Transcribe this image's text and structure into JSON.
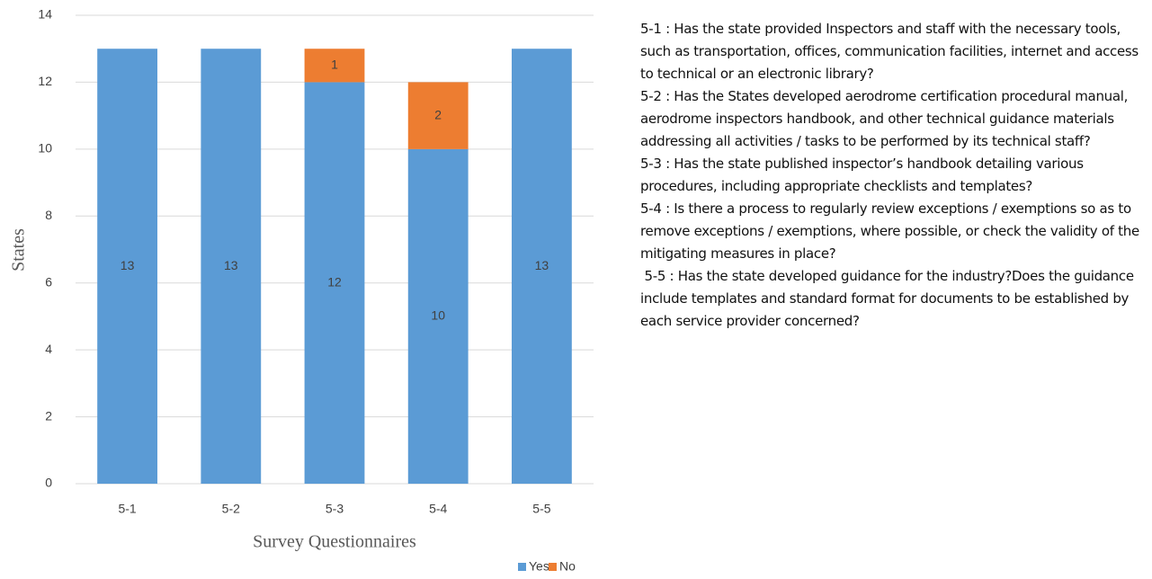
{
  "chart_data": {
    "type": "stacked_bar",
    "categories": [
      "5-1",
      "5-2",
      "5-3",
      "5-4",
      "5-5"
    ],
    "series": [
      {
        "name": "Yes",
        "color": "#5b9bd5",
        "values": [
          13,
          13,
          12,
          10,
          13
        ]
      },
      {
        "name": "No",
        "color": "#ed7d31",
        "values": [
          0,
          0,
          1,
          2,
          0
        ]
      }
    ],
    "ylim": [
      0,
      14
    ],
    "yticks": [
      0,
      2,
      4,
      6,
      8,
      10,
      12,
      14
    ],
    "grid": true,
    "y_label": "States",
    "x_label": "Survey Questionnaires",
    "legend": "bottom",
    "notes": [
      "5-1 : Has the state provided Inspectors and staff with the necessary tools, such as transportation, offices, communication facilities, internet and access to technical or an electronic library?",
      "5-2 : Has the States developed aerodrome certification procedural manual, aerodrome inspectors handbook, and other technical guidance materials addressing all activities / tasks to be performed by its technical staff?",
      "5-3 : Has the state published inspector’s handbook detailing various procedures, including appropriate checklists and templates?",
      "5-4 : Is there a process to regularly review exceptions / exemptions so as to remove exceptions / exemptions, where possible, or check the validity of the mitigating measures in place?",
      " 5-5 : Has the state developed guidance for the industry?Does the guidance include templates and standard format for documents to be established by each service provider concerned?"
    ]
  }
}
